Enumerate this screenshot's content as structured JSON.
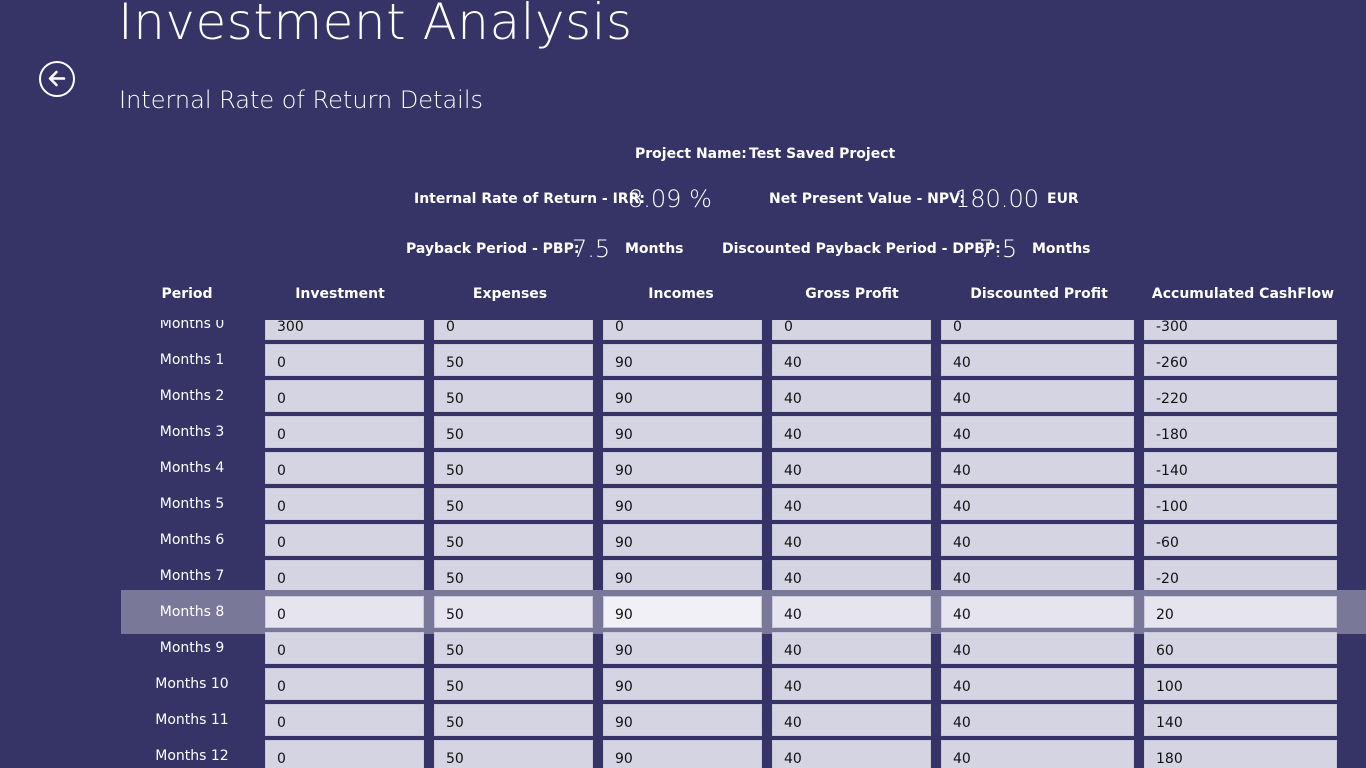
{
  "app": {
    "title": "Investment Analysis",
    "subtitle": "Internal Rate of Return Details"
  },
  "summary": {
    "project_name_label": "Project Name:",
    "project_name": "Test Saved Project",
    "irr_label": "Internal Rate of Return -  IRR:",
    "irr_value": "8.09 %",
    "npv_label": "Net Present Value -  NPV:",
    "npv_value": "180.00",
    "npv_currency": "EUR",
    "pbp_label": "Payback Period -  PBP:",
    "pbp_value": "7.5",
    "pbp_unit": "Months",
    "dpbp_label": "Discounted Payback Period -  DPBP:",
    "dpbp_value": "7.5",
    "dpbp_unit": "Months"
  },
  "table": {
    "headers": [
      "Period",
      "Investment",
      "Expenses",
      "Incomes",
      "Gross Profit",
      "Discounted Profit",
      "Accumulated CashFlow"
    ],
    "selected_row": 8,
    "rows": [
      {
        "period": "Months 0",
        "investment": "300",
        "expenses": "0",
        "incomes": "0",
        "gross_profit": "0",
        "discounted_profit": "0",
        "accumulated_cashflow": "-300"
      },
      {
        "period": "Months 1",
        "investment": "0",
        "expenses": "50",
        "incomes": "90",
        "gross_profit": "40",
        "discounted_profit": "40",
        "accumulated_cashflow": "-260"
      },
      {
        "period": "Months 2",
        "investment": "0",
        "expenses": "50",
        "incomes": "90",
        "gross_profit": "40",
        "discounted_profit": "40",
        "accumulated_cashflow": "-220"
      },
      {
        "period": "Months 3",
        "investment": "0",
        "expenses": "50",
        "incomes": "90",
        "gross_profit": "40",
        "discounted_profit": "40",
        "accumulated_cashflow": "-180"
      },
      {
        "period": "Months 4",
        "investment": "0",
        "expenses": "50",
        "incomes": "90",
        "gross_profit": "40",
        "discounted_profit": "40",
        "accumulated_cashflow": "-140"
      },
      {
        "period": "Months 5",
        "investment": "0",
        "expenses": "50",
        "incomes": "90",
        "gross_profit": "40",
        "discounted_profit": "40",
        "accumulated_cashflow": "-100"
      },
      {
        "period": "Months 6",
        "investment": "0",
        "expenses": "50",
        "incomes": "90",
        "gross_profit": "40",
        "discounted_profit": "40",
        "accumulated_cashflow": "-60"
      },
      {
        "period": "Months 7",
        "investment": "0",
        "expenses": "50",
        "incomes": "90",
        "gross_profit": "40",
        "discounted_profit": "40",
        "accumulated_cashflow": "-20"
      },
      {
        "period": "Months 8",
        "investment": "0",
        "expenses": "50",
        "incomes": "90",
        "gross_profit": "40",
        "discounted_profit": "40",
        "accumulated_cashflow": "20"
      },
      {
        "period": "Months 9",
        "investment": "0",
        "expenses": "50",
        "incomes": "90",
        "gross_profit": "40",
        "discounted_profit": "40",
        "accumulated_cashflow": "60"
      },
      {
        "period": "Months 10",
        "investment": "0",
        "expenses": "50",
        "incomes": "90",
        "gross_profit": "40",
        "discounted_profit": "40",
        "accumulated_cashflow": "100"
      },
      {
        "period": "Months 11",
        "investment": "0",
        "expenses": "50",
        "incomes": "90",
        "gross_profit": "40",
        "discounted_profit": "40",
        "accumulated_cashflow": "140"
      },
      {
        "period": "Months 12",
        "investment": "0",
        "expenses": "50",
        "incomes": "90",
        "gross_profit": "40",
        "discounted_profit": "40",
        "accumulated_cashflow": "180"
      }
    ]
  },
  "icons": {
    "back": "back-arrow-icon"
  },
  "colors": {
    "background": "#363466",
    "cell": "#d5d4e3",
    "selection": "#7a7898"
  }
}
